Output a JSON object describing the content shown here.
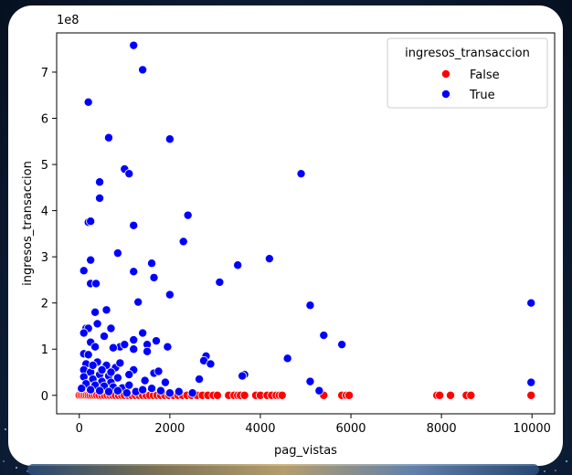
{
  "chart_data": {
    "type": "scatter",
    "xlabel": "pag_vistas",
    "ylabel": "ingresos_transaccion",
    "y_scale_label": "1e8",
    "xlim": [
      -500,
      10500
    ],
    "ylim": [
      -0.4,
      7.85
    ],
    "x_ticks": [
      0,
      2000,
      4000,
      6000,
      8000,
      10000
    ],
    "y_ticks": [
      0,
      1,
      2,
      3,
      4,
      5,
      6,
      7
    ],
    "grid": false,
    "legend": {
      "title": "ingresos_transaccion",
      "placement": "top-right",
      "entries": [
        "False",
        "True"
      ]
    },
    "series": [
      {
        "name": "False",
        "color": "#ff0000",
        "points": [
          [
            0,
            0
          ],
          [
            40,
            0
          ],
          [
            80,
            0
          ],
          [
            120,
            0
          ],
          [
            160,
            0
          ],
          [
            200,
            0
          ],
          [
            240,
            0
          ],
          [
            290,
            0
          ],
          [
            340,
            0
          ],
          [
            390,
            0
          ],
          [
            440,
            0
          ],
          [
            500,
            0
          ],
          [
            560,
            0
          ],
          [
            620,
            0
          ],
          [
            680,
            0
          ],
          [
            740,
            0
          ],
          [
            800,
            0
          ],
          [
            870,
            0
          ],
          [
            940,
            0
          ],
          [
            1000,
            0
          ],
          [
            1080,
            0
          ],
          [
            1160,
            0
          ],
          [
            1240,
            0
          ],
          [
            1320,
            0
          ],
          [
            1400,
            0
          ],
          [
            1480,
            0
          ],
          [
            1560,
            0
          ],
          [
            1640,
            0
          ],
          [
            1720,
            0
          ],
          [
            1800,
            0
          ],
          [
            1890,
            0
          ],
          [
            1980,
            0
          ],
          [
            2080,
            0
          ],
          [
            2180,
            0
          ],
          [
            2280,
            0
          ],
          [
            2380,
            0
          ],
          [
            2480,
            0
          ],
          [
            2600,
            0
          ],
          [
            2720,
            0
          ],
          [
            2840,
            0
          ],
          [
            2960,
            0
          ],
          [
            3050,
            0
          ],
          [
            3300,
            0
          ],
          [
            3420,
            0
          ],
          [
            3500,
            0
          ],
          [
            3560,
            0
          ],
          [
            3650,
            0
          ],
          [
            3900,
            0
          ],
          [
            4000,
            0
          ],
          [
            4150,
            0
          ],
          [
            4250,
            0
          ],
          [
            4350,
            0
          ],
          [
            4420,
            0
          ],
          [
            4480,
            0
          ],
          [
            5400,
            0
          ],
          [
            5800,
            0
          ],
          [
            5900,
            0
          ],
          [
            5960,
            0
          ],
          [
            7900,
            0
          ],
          [
            7960,
            0
          ],
          [
            8200,
            0
          ],
          [
            8550,
            0
          ],
          [
            8650,
            0
          ],
          [
            9980,
            0
          ]
        ]
      },
      {
        "name": "True",
        "color": "#0000ff",
        "points": [
          [
            1200,
            7.58
          ],
          [
            1400,
            7.05
          ],
          [
            200,
            6.35
          ],
          [
            650,
            5.58
          ],
          [
            2000,
            5.55
          ],
          [
            1000,
            4.9
          ],
          [
            1100,
            4.8
          ],
          [
            4900,
            4.8
          ],
          [
            450,
            4.62
          ],
          [
            450,
            4.27
          ],
          [
            2400,
            3.9
          ],
          [
            200,
            3.75
          ],
          [
            250,
            3.77
          ],
          [
            1200,
            3.68
          ],
          [
            2300,
            3.33
          ],
          [
            850,
            3.08
          ],
          [
            1600,
            2.86
          ],
          [
            250,
            2.93
          ],
          [
            4200,
            2.96
          ],
          [
            100,
            2.7
          ],
          [
            1200,
            2.68
          ],
          [
            3500,
            2.82
          ],
          [
            1650,
            2.55
          ],
          [
            250,
            2.42
          ],
          [
            370,
            2.42
          ],
          [
            3100,
            2.45
          ],
          [
            2000,
            2.18
          ],
          [
            1300,
            2.02
          ],
          [
            5100,
            1.95
          ],
          [
            9980,
            2.0
          ],
          [
            600,
            1.85
          ],
          [
            350,
            1.8
          ],
          [
            400,
            1.55
          ],
          [
            150,
            1.45
          ],
          [
            200,
            1.45
          ],
          [
            700,
            1.45
          ],
          [
            100,
            1.35
          ],
          [
            1400,
            1.35
          ],
          [
            5400,
            1.3
          ],
          [
            550,
            1.28
          ],
          [
            1200,
            1.2
          ],
          [
            1700,
            1.18
          ],
          [
            250,
            1.15
          ],
          [
            350,
            1.05
          ],
          [
            1500,
            1.1
          ],
          [
            1950,
            1.05
          ],
          [
            900,
            1.05
          ],
          [
            1200,
            1.0
          ],
          [
            750,
            1.03
          ],
          [
            1000,
            1.1
          ],
          [
            5800,
            1.1
          ],
          [
            1500,
            0.95
          ],
          [
            100,
            0.9
          ],
          [
            200,
            0.88
          ],
          [
            4600,
            0.8
          ],
          [
            2800,
            0.85
          ],
          [
            2750,
            0.75
          ],
          [
            2900,
            0.68
          ],
          [
            400,
            0.72
          ],
          [
            150,
            0.68
          ],
          [
            600,
            0.65
          ],
          [
            800,
            0.6
          ],
          [
            1200,
            0.55
          ],
          [
            1100,
            0.45
          ],
          [
            1650,
            0.48
          ],
          [
            1750,
            0.52
          ],
          [
            100,
            0.55
          ],
          [
            250,
            0.5
          ],
          [
            450,
            0.45
          ],
          [
            650,
            0.42
          ],
          [
            850,
            0.38
          ],
          [
            3650,
            0.45
          ],
          [
            3600,
            0.42
          ],
          [
            2650,
            0.35
          ],
          [
            100,
            0.4
          ],
          [
            300,
            0.35
          ],
          [
            500,
            0.3
          ],
          [
            700,
            0.28
          ],
          [
            1450,
            0.32
          ],
          [
            1900,
            0.28
          ],
          [
            150,
            0.25
          ],
          [
            350,
            0.22
          ],
          [
            550,
            0.2
          ],
          [
            750,
            0.18
          ],
          [
            950,
            0.16
          ],
          [
            1100,
            0.22
          ],
          [
            5100,
            0.3
          ],
          [
            50,
            0.15
          ],
          [
            250,
            0.12
          ],
          [
            450,
            0.1
          ],
          [
            650,
            0.08
          ],
          [
            850,
            0.1
          ],
          [
            1050,
            0.05
          ],
          [
            1250,
            0.08
          ],
          [
            1400,
            0.12
          ],
          [
            1600,
            0.15
          ],
          [
            1800,
            0.1
          ],
          [
            2000,
            0.05
          ],
          [
            2200,
            0.08
          ],
          [
            2500,
            0.05
          ],
          [
            5300,
            0.1
          ],
          [
            9980,
            0.28
          ],
          [
            300,
            0.65
          ],
          [
            500,
            0.55
          ],
          [
            700,
            0.5
          ],
          [
            900,
            0.7
          ]
        ]
      }
    ]
  }
}
